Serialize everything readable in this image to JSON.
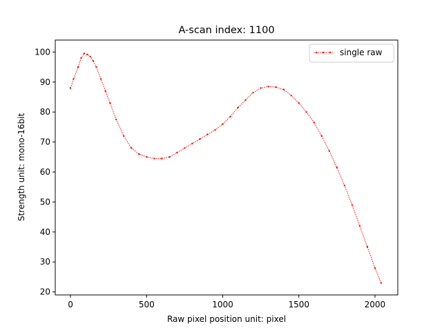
{
  "chart_data": {
    "type": "line",
    "title": "A-scan index: 1100",
    "xlabel": "Raw pixel position unit: pixel",
    "ylabel": "Strength unit: mono-16bit",
    "xlim": [
      -100,
      2150
    ],
    "ylim": [
      19,
      104
    ],
    "x_ticks": [
      0,
      500,
      1000,
      1500,
      2000
    ],
    "y_ticks": [
      20,
      30,
      40,
      50,
      60,
      70,
      80,
      90,
      100
    ],
    "grid": false,
    "legend": {
      "placement": "top-right"
    },
    "series": [
      {
        "name": "single raw",
        "color": "#ff0000",
        "style": "dotted",
        "marker": "point",
        "x": [
          0,
          20,
          50,
          70,
          90,
          110,
          130,
          150,
          170,
          200,
          230,
          260,
          300,
          350,
          400,
          450,
          500,
          550,
          600,
          650,
          700,
          750,
          800,
          850,
          900,
          950,
          1000,
          1050,
          1100,
          1150,
          1200,
          1250,
          1300,
          1350,
          1400,
          1450,
          1500,
          1550,
          1600,
          1650,
          1700,
          1750,
          1800,
          1850,
          1900,
          1950,
          2000,
          2040
        ],
        "values": [
          88,
          91,
          95,
          98,
          99.5,
          99.2,
          98.5,
          97,
          95,
          91,
          87,
          83,
          77.5,
          72,
          68,
          66,
          65,
          64.5,
          64.5,
          65,
          66.5,
          68,
          69.5,
          71,
          72.5,
          74,
          76,
          78.5,
          81.5,
          84,
          86.5,
          88,
          88.5,
          88.3,
          87.5,
          85.5,
          83,
          80,
          76.5,
          72,
          67,
          61.5,
          55.5,
          49,
          42,
          35,
          28,
          23
        ]
      }
    ]
  }
}
